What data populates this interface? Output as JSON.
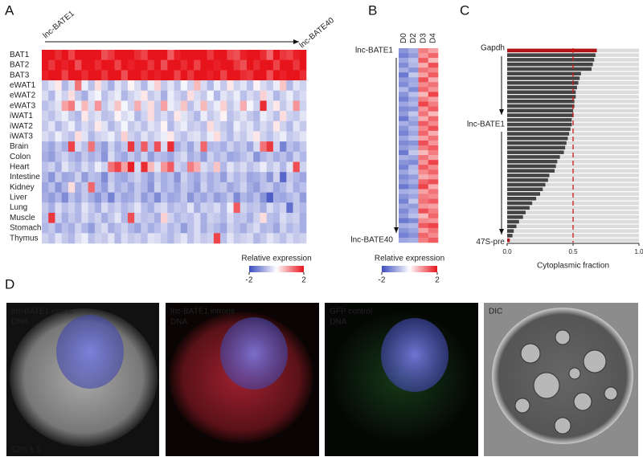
{
  "panel_labels": [
    "A",
    "B",
    "C",
    "D"
  ],
  "chart_data": [
    {
      "type": "heatmap",
      "column_start": "lnc-BATE1",
      "column_end": "lnc-BATE40",
      "rows": [
        "BAT1",
        "BAT2",
        "BAT3",
        "eWAT1",
        "eWAT2",
        "eWAT3",
        "iWAT1",
        "iWAT2",
        "iWAT3",
        "Brain",
        "Colon",
        "Heart",
        "Intestine",
        "Kidney",
        "Liver",
        "Lung",
        "Muscle",
        "Stomach",
        "Thymus"
      ],
      "highlight_rows": [
        0,
        1,
        2
      ],
      "highlight_color": "#a31515",
      "values": [
        [
          2,
          2,
          1.8,
          2,
          1.6,
          2,
          2,
          2,
          2,
          1.5,
          1.7,
          2,
          2,
          2,
          1.8,
          1.6,
          2,
          2,
          2,
          1.4,
          1.9,
          2,
          2,
          2,
          2,
          1.7,
          2,
          2,
          1.6,
          1.5,
          1.9,
          2,
          2,
          1.8,
          1.3,
          2,
          1.7,
          1.6,
          1.9,
          2
        ],
        [
          2,
          1.7,
          2,
          1.9,
          2,
          1.5,
          2,
          2,
          1.8,
          2,
          2,
          1.6,
          2,
          1.9,
          2,
          2,
          1.7,
          2,
          1.5,
          2,
          2,
          1.8,
          2,
          1.6,
          2,
          2,
          1.9,
          2,
          2,
          1.7,
          1.5,
          2,
          1.8,
          2,
          2,
          1.6,
          2,
          2,
          1.7,
          2
        ],
        [
          1.9,
          2,
          2,
          1.6,
          2,
          2,
          1.8,
          2,
          2,
          1.7,
          2,
          2,
          1.5,
          2,
          2,
          1.8,
          2,
          1.9,
          2,
          2,
          1.6,
          2,
          1.7,
          2,
          2,
          1.9,
          2,
          1.6,
          2,
          2,
          1.8,
          1.7,
          2,
          2,
          1.5,
          2,
          1.9,
          2,
          2,
          1.8
        ],
        [
          -0.6,
          -0.3,
          0.2,
          -0.8,
          -0.4,
          1.2,
          -0.2,
          -0.7,
          0.3,
          -0.5,
          -0.9,
          -0.3,
          -0.6,
          0.1,
          -0.4,
          -0.8,
          -0.2,
          0.4,
          -0.6,
          -0.3,
          -0.7,
          -0.1,
          -0.5,
          0.6,
          -0.4,
          -0.8,
          -0.2,
          -0.6,
          0.2,
          -0.5,
          -0.3,
          -0.7,
          0.1,
          -0.4,
          -0.6,
          -0.2,
          0.5,
          -0.8,
          -0.3,
          -0.5
        ],
        [
          -0.4,
          -0.8,
          -0.2,
          -0.5,
          0.3,
          -0.6,
          -0.9,
          -0.3,
          -0.1,
          -0.7,
          -0.4,
          -0.2,
          -0.8,
          -0.5,
          -0.3,
          0.2,
          -0.6,
          -0.4,
          -0.9,
          -0.2,
          -0.5,
          -0.7,
          0.3,
          -0.4,
          -0.6,
          -0.1,
          -0.8,
          -0.3,
          -0.5,
          -0.2,
          -0.7,
          -0.4,
          -0.6,
          0.4,
          -0.3,
          -0.8,
          -0.5,
          -0.2,
          -0.6,
          -0.4
        ],
        [
          -0.7,
          -0.5,
          -0.3,
          0.8,
          1.1,
          -0.2,
          0.6,
          -0.4,
          0.9,
          -0.6,
          -0.3,
          0.5,
          -0.1,
          -0.5,
          0.7,
          -0.4,
          0.3,
          -0.6,
          0.8,
          -0.2,
          -0.4,
          0.5,
          -0.7,
          -0.3,
          0.6,
          -0.5,
          -0.2,
          0.4,
          -0.6,
          -0.3,
          0.7,
          -0.1,
          -0.5,
          1.8,
          -0.4,
          0.2,
          -0.6,
          -0.3,
          0.9,
          -0.5
        ],
        [
          -0.5,
          -0.7,
          -0.4,
          -0.2,
          -0.6,
          -0.8,
          0.2,
          -0.5,
          -0.3,
          -0.7,
          -0.6,
          0.1,
          -0.4,
          -0.2,
          -0.8,
          -0.5,
          0.3,
          -0.6,
          -0.4,
          -0.7,
          0.2,
          -0.3,
          -0.5,
          -0.8,
          -0.2,
          -0.6,
          -0.4,
          0.1,
          -0.7,
          -0.5,
          -0.3,
          -0.6,
          -0.8,
          -0.2,
          -0.4,
          -0.7,
          0.3,
          -0.5,
          -0.6,
          -0.3
        ],
        [
          -0.6,
          -0.3,
          -0.8,
          -0.5,
          -0.2,
          -0.7,
          -0.4,
          -0.6,
          0.2,
          -0.3,
          -0.8,
          -0.5,
          -0.1,
          -0.6,
          -0.4,
          -0.7,
          -0.3,
          -0.5,
          0.1,
          -0.8,
          -0.4,
          -0.2,
          -0.6,
          -0.5,
          -0.7,
          0.3,
          -0.4,
          -0.6,
          -0.8,
          -0.2,
          -0.5,
          -0.3,
          -0.7,
          -0.4,
          -0.6,
          0.2,
          -0.5,
          -0.8,
          -0.3,
          -0.6
        ],
        [
          -0.4,
          -0.6,
          -0.2,
          -0.5,
          -0.7,
          0.3,
          -0.3,
          -0.8,
          -0.5,
          -0.4,
          -0.2,
          -0.6,
          0.4,
          -0.5,
          -0.7,
          -0.3,
          -0.6,
          -0.4,
          -0.2,
          0.2,
          -0.5,
          -0.7,
          -0.4,
          -0.3,
          -0.6,
          -0.2,
          0.3,
          -0.5,
          -0.8,
          -0.4,
          -0.6,
          -0.3,
          0.2,
          -0.5,
          -0.7,
          -0.4,
          -0.2,
          -0.6,
          -0.5,
          -0.3
        ],
        [
          -0.8,
          -1,
          -0.6,
          -0.9,
          1.6,
          -0.4,
          -0.7,
          1.2,
          -0.8,
          -1.1,
          -0.5,
          -0.9,
          -0.6,
          1.7,
          -0.8,
          1.4,
          -0.7,
          1.5,
          -0.4,
          1.8,
          -0.9,
          -0.6,
          -1,
          -0.5,
          1.3,
          -0.8,
          -0.7,
          -0.9,
          -0.5,
          -0.8,
          -0.6,
          -1,
          -0.4,
          1.2,
          1.7,
          -0.5,
          -1.4,
          -0.7,
          -0.9,
          -0.6
        ],
        [
          -0.9,
          -1.1,
          -0.7,
          -0.5,
          -0.8,
          -1,
          -0.6,
          -0.9,
          -0.7,
          -1.2,
          -0.4,
          -0.8,
          -1,
          -0.6,
          -0.9,
          -0.5,
          -1.1,
          -0.7,
          -0.8,
          -1,
          -0.6,
          -0.4,
          -0.9,
          -0.7,
          -1.1,
          -0.5,
          -0.8,
          -0.6,
          -1,
          -0.9,
          -0.7,
          -0.5,
          -1.2,
          -0.8,
          -0.6,
          -0.9,
          -0.7,
          -1,
          -0.5,
          -0.8
        ],
        [
          -0.7,
          -0.5,
          -0.9,
          -0.3,
          -0.6,
          -0.8,
          -0.4,
          -0.7,
          -0.2,
          -0.5,
          1.2,
          1.6,
          0.8,
          1.9,
          -0.4,
          1.8,
          0.6,
          -0.3,
          0.9,
          1.4,
          -0.5,
          -0.7,
          1.1,
          0.7,
          -0.4,
          -0.6,
          0.5,
          -0.8,
          -0.3,
          -0.6,
          -0.4,
          -0.7,
          -0.5,
          -0.2,
          -0.6,
          -0.4,
          -0.8,
          -0.3,
          1.5,
          -0.5
        ],
        [
          -0.8,
          -1.2,
          -0.6,
          -1,
          -0.9,
          -0.5,
          -1.1,
          -0.7,
          -0.8,
          -1.3,
          -0.6,
          -0.9,
          -1,
          -0.7,
          -0.5,
          -0.8,
          -1.1,
          -0.6,
          -0.9,
          -0.7,
          -1.2,
          -0.5,
          -0.8,
          -1,
          -0.6,
          -0.9,
          -0.7,
          -1.1,
          -0.5,
          -0.8,
          -0.6,
          -1,
          -0.9,
          -0.7,
          -1.2,
          -0.5,
          -1.7,
          -0.6,
          -0.8,
          -1
        ],
        [
          -1,
          -0.7,
          -1.2,
          -0.8,
          0.3,
          -0.9,
          -0.6,
          1.3,
          -0.8,
          -1.1,
          -0.5,
          -0.9,
          -0.7,
          -1,
          -0.6,
          -0.8,
          -1.2,
          -0.5,
          -0.9,
          -0.7,
          -1,
          -0.6,
          -0.8,
          -1.1,
          -0.5,
          -0.9,
          -0.7,
          -0.6,
          -1,
          -0.8,
          -0.5,
          -0.9,
          -1.1,
          -0.7,
          -0.6,
          -1,
          -0.8,
          -0.5,
          -0.9,
          -0.7
        ],
        [
          -0.9,
          -1.1,
          -0.8,
          -1.3,
          -0.7,
          -1,
          -0.6,
          -0.9,
          -1.2,
          -0.8,
          -1.4,
          -0.7,
          -1,
          -0.9,
          -0.6,
          -1.1,
          -0.8,
          -1.3,
          -0.7,
          -1,
          -0.9,
          -0.6,
          -1.2,
          -0.8,
          -1,
          -0.7,
          -1.1,
          -0.9,
          -0.6,
          -1.3,
          -0.8,
          -1,
          -0.7,
          -1.2,
          -1.8,
          -0.9,
          -1,
          -0.8,
          -0.6,
          -1.1
        ],
        [
          -0.6,
          -0.9,
          -0.4,
          -0.7,
          -0.5,
          -0.8,
          -0.3,
          -0.6,
          -0.9,
          -0.4,
          -0.7,
          -0.5,
          -0.8,
          -0.6,
          -0.3,
          -0.7,
          -0.9,
          -0.5,
          -0.4,
          -0.8,
          -0.6,
          -0.7,
          -0.3,
          -0.9,
          -0.5,
          -0.6,
          -0.4,
          -0.8,
          -0.2,
          1.4,
          -0.5,
          -0.7,
          -0.6,
          -0.9,
          -0.4,
          -0.7,
          -0.5,
          -1.6,
          -0.6,
          -0.8
        ],
        [
          -0.7,
          1.7,
          -0.5,
          -0.9,
          -0.6,
          -0.8,
          -0.4,
          -0.7,
          -0.5,
          -0.9,
          -0.6,
          -0.3,
          -0.8,
          1.5,
          -0.5,
          -0.7,
          -0.6,
          -0.9,
          0.4,
          -0.5,
          -0.8,
          -0.6,
          -0.7,
          -0.4,
          -0.9,
          -0.5,
          -0.6,
          -0.8,
          -0.4,
          -0.7,
          -0.6,
          -0.9,
          -0.5,
          0.3,
          -0.7,
          -0.8,
          -0.4,
          -0.6,
          -0.5,
          -0.9
        ],
        [
          -0.8,
          -0.6,
          -1,
          -0.7,
          -0.9,
          -0.5,
          -0.8,
          -1.1,
          -0.6,
          -0.4,
          -0.9,
          -0.7,
          -0.5,
          -0.8,
          -1,
          -0.6,
          -0.9,
          -0.7,
          -0.5,
          -0.8,
          -0.6,
          -1.1,
          -0.7,
          -0.4,
          -0.9,
          -0.6,
          -0.8,
          -1,
          -0.5,
          -0.7,
          -0.9,
          -0.6,
          -0.4,
          -0.8,
          -0.7,
          -1,
          -0.5,
          -0.8,
          -0.6,
          -0.9
        ],
        [
          -0.5,
          -0.7,
          -0.3,
          -0.6,
          -0.8,
          -0.4,
          -0.2,
          -0.7,
          -0.5,
          -0.6,
          -0.3,
          -0.8,
          -0.4,
          -0.6,
          -0.5,
          -0.7,
          -0.3,
          -0.4,
          -0.6,
          -0.8,
          -0.5,
          -0.3,
          -0.7,
          -0.4,
          -0.6,
          -0.5,
          1.6,
          -0.7,
          -0.3,
          -0.6,
          -0.5,
          -0.4,
          -0.8,
          -0.6,
          -0.3,
          -0.5,
          -0.7,
          -0.4,
          -0.6,
          -0.5
        ]
      ],
      "colors": [
        "#3b4cc0",
        "#ffffff",
        "#e8141c"
      ],
      "clim": [
        -2,
        2
      ],
      "cticks": [
        -2,
        2
      ],
      "colorbar_label": "Relative expression"
    },
    {
      "type": "heatmap",
      "columns": [
        "D0",
        "D2",
        "D3",
        "D4"
      ],
      "rows": [
        "lnc-BATE1",
        null,
        null,
        null,
        null,
        null,
        null,
        null,
        null,
        null,
        null,
        null,
        null,
        null,
        null,
        null,
        null,
        null,
        null,
        null,
        null,
        null,
        null,
        null,
        null,
        null,
        null,
        null,
        null,
        null,
        null,
        null,
        null,
        null,
        null,
        null,
        null,
        null,
        null,
        "lnc-BATE40"
      ],
      "values": [
        [
          -1.2,
          -0.9,
          1.1,
          0.8
        ],
        [
          -1.4,
          -1.1,
          0.9,
          1.3
        ],
        [
          -1.0,
          -0.7,
          1.4,
          0.6
        ],
        [
          -1.3,
          -0.8,
          0.7,
          1.5
        ],
        [
          -0.9,
          -1.2,
          1.2,
          1.0
        ],
        [
          -1.5,
          -0.6,
          0.8,
          1.4
        ],
        [
          -1.1,
          -1.0,
          1.5,
          0.7
        ],
        [
          -1.3,
          -0.9,
          1.0,
          1.2
        ],
        [
          -0.8,
          -1.3,
          1.3,
          0.9
        ],
        [
          -1.2,
          -0.7,
          0.6,
          1.6
        ],
        [
          -1.4,
          -1.0,
          1.1,
          0.8
        ],
        [
          -1.0,
          -0.8,
          1.6,
          1.1
        ],
        [
          -1.3,
          -1.2,
          0.9,
          1.4
        ],
        [
          -1.1,
          -0.6,
          1.2,
          0.6
        ],
        [
          -1.5,
          -0.9,
          0.7,
          1.3
        ],
        [
          -0.9,
          -1.1,
          1.4,
          1.0
        ],
        [
          -1.2,
          -0.8,
          1.0,
          1.5
        ],
        [
          -1.4,
          -1.0,
          1.3,
          0.7
        ],
        [
          -1.0,
          -0.7,
          0.8,
          1.2
        ],
        [
          -1.3,
          -1.2,
          1.5,
          0.9
        ],
        [
          -1.1,
          -0.9,
          1.1,
          1.4
        ],
        [
          -1.5,
          -0.6,
          0.6,
          1.1
        ],
        [
          -0.9,
          -1.0,
          1.2,
          0.8
        ],
        [
          -1.2,
          -1.3,
          0.9,
          1.6
        ],
        [
          -1.4,
          -0.8,
          1.4,
          1.0
        ],
        [
          -1.0,
          -0.7,
          1.0,
          1.3
        ],
        [
          -1.3,
          -1.1,
          0.7,
          0.9
        ],
        [
          -1.1,
          -0.9,
          1.3,
          1.5
        ],
        [
          -1.5,
          -1.2,
          1.6,
          0.7
        ],
        [
          -0.9,
          -0.8,
          0.8,
          1.2
        ],
        [
          -1.2,
          -1.0,
          1.1,
          1.0
        ],
        [
          -1.4,
          -0.6,
          1.2,
          1.4
        ],
        [
          -1.0,
          -1.1,
          0.9,
          0.8
        ],
        [
          -1.3,
          -0.9,
          1.5,
          1.1
        ],
        [
          -1.1,
          -0.7,
          0.6,
          1.3
        ],
        [
          -1.5,
          -1.3,
          1.0,
          0.9
        ],
        [
          -0.9,
          -0.8,
          1.4,
          1.6
        ],
        [
          -1.2,
          -1.0,
          0.8,
          1.2
        ],
        [
          -1.4,
          -1.2,
          1.3,
          1.0
        ],
        [
          -1.0,
          -0.9,
          1.1,
          1.4
        ]
      ],
      "colors": [
        "#3b4cc0",
        "#ffffff",
        "#e8141c"
      ],
      "clim": [
        -2,
        2
      ],
      "cticks": [
        -2,
        2
      ],
      "colorbar_label": "Relative expression"
    },
    {
      "type": "hbar",
      "categories": [
        "Gapdh",
        null,
        null,
        null,
        null,
        null,
        null,
        null,
        null,
        null,
        null,
        null,
        null,
        null,
        null,
        null,
        "lnc-BATE1",
        null,
        null,
        null,
        null,
        null,
        null,
        null,
        null,
        null,
        null,
        null,
        null,
        null,
        null,
        null,
        null,
        null,
        null,
        null,
        null,
        null,
        null,
        null,
        null,
        "47S-pre"
      ],
      "values": [
        0.68,
        0.67,
        0.66,
        0.65,
        0.64,
        0.56,
        0.55,
        0.54,
        0.53,
        0.52,
        0.52,
        0.51,
        0.51,
        0.5,
        0.5,
        0.49,
        0.49,
        0.48,
        0.47,
        0.46,
        0.45,
        0.44,
        0.43,
        0.4,
        0.38,
        0.37,
        0.36,
        0.32,
        0.31,
        0.29,
        0.27,
        0.25,
        0.22,
        0.19,
        0.17,
        0.14,
        0.12,
        0.09,
        0.07,
        0.05,
        0.04,
        0.02
      ],
      "color": "#444444",
      "highlight": [
        0,
        41
      ],
      "highlight_color": "#b01414",
      "background_color": "#dcdcdc",
      "xlim": [
        0,
        1
      ],
      "xticks": [
        {
          "value": 0,
          "label": "0.0"
        },
        0.5,
        {
          "value": 1,
          "label": "1.0"
        }
      ],
      "xlabel": "Cytoplasmic fraction",
      "reference_line": 0.5
    }
  ],
  "images": [
    {
      "label": "lnc-BATE1 exons",
      "stain": "DNA",
      "note": "52% ± 1"
    },
    {
      "label": "lnc-BATE1 introns",
      "stain": "DNA"
    },
    {
      "label": "GFP control",
      "stain": "DNA"
    },
    {
      "label": "DIC"
    }
  ]
}
